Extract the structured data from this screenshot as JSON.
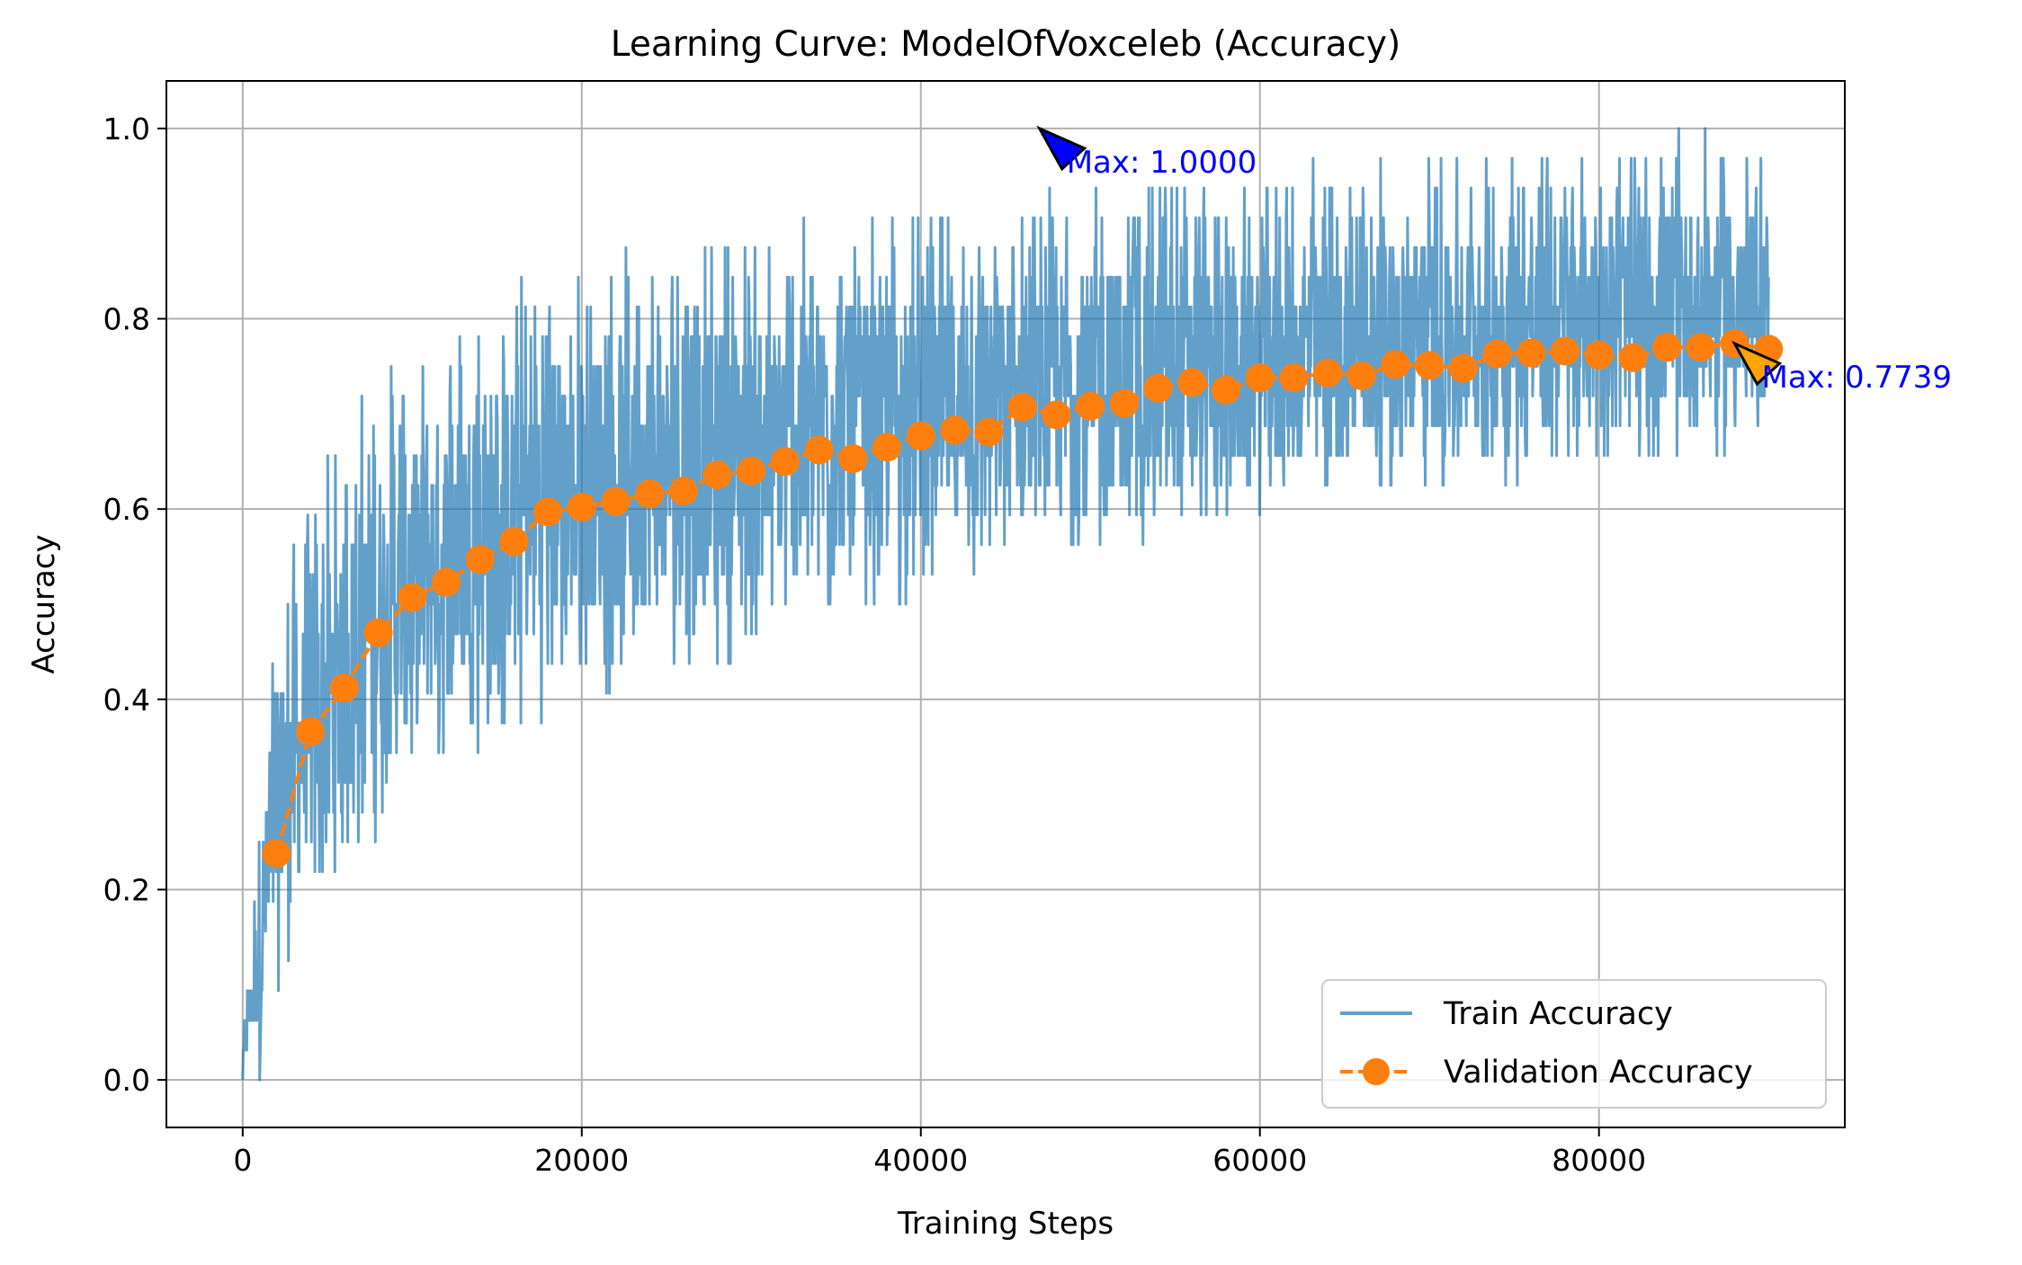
{
  "chart_data": {
    "type": "line",
    "title": "Learning Curve: ModelOfVoxceleb (Accuracy)",
    "xlabel": "Training Steps",
    "ylabel": "Accuracy",
    "xlim": [
      -4500,
      94500
    ],
    "ylim": [
      -0.05,
      1.05
    ],
    "x_ticks": [
      0,
      20000,
      40000,
      60000,
      80000
    ],
    "x_tick_labels": [
      "0",
      "20000",
      "40000",
      "60000",
      "80000"
    ],
    "y_ticks": [
      0.0,
      0.2,
      0.4,
      0.6,
      0.8,
      1.0
    ],
    "y_tick_labels": [
      "0.0",
      "0.2",
      "0.4",
      "0.6",
      "0.8",
      "1.0"
    ],
    "grid": true,
    "legend_position": "lower-right",
    "colors": {
      "train": "#1f77b4",
      "validation": "#ff7f0e",
      "annotation_text": "#0000ff",
      "train_max_marker": "#0000ff",
      "validation_max_marker": "#ffa500"
    },
    "series": [
      {
        "name": "Train Accuracy",
        "style": "solid-line",
        "note_points": "noisy per-step values; envelope described by x, mean, low, high",
        "x": [
          0,
          500,
          1000,
          1500,
          2000,
          3000,
          4000,
          5000,
          6000,
          8000,
          10000,
          12000,
          14000,
          16000,
          18000,
          20000,
          22000,
          24000,
          26000,
          28000,
          30000,
          32000,
          34000,
          36000,
          38000,
          40000,
          42000,
          44000,
          46000,
          48000,
          50000,
          52000,
          54000,
          56000,
          58000,
          60000,
          62000,
          64000,
          66000,
          68000,
          70000,
          72000,
          74000,
          76000,
          78000,
          80000,
          82000,
          84000,
          86000,
          88000,
          90000
        ],
        "mean": [
          0.02,
          0.08,
          0.15,
          0.22,
          0.28,
          0.33,
          0.37,
          0.4,
          0.43,
          0.48,
          0.52,
          0.55,
          0.57,
          0.59,
          0.61,
          0.62,
          0.63,
          0.64,
          0.645,
          0.655,
          0.665,
          0.67,
          0.68,
          0.685,
          0.69,
          0.7,
          0.705,
          0.71,
          0.715,
          0.72,
          0.725,
          0.73,
          0.735,
          0.74,
          0.745,
          0.75,
          0.755,
          0.76,
          0.765,
          0.77,
          0.775,
          0.78,
          0.785,
          0.79,
          0.795,
          0.8,
          0.8,
          0.805,
          0.81,
          0.81,
          0.81
        ],
        "low": [
          0.0,
          0.0,
          0.0,
          0.05,
          0.1,
          0.14,
          0.17,
          0.2,
          0.22,
          0.26,
          0.29,
          0.32,
          0.34,
          0.36,
          0.38,
          0.4,
          0.41,
          0.42,
          0.43,
          0.44,
          0.45,
          0.46,
          0.47,
          0.48,
          0.49,
          0.5,
          0.5,
          0.51,
          0.52,
          0.53,
          0.54,
          0.55,
          0.56,
          0.57,
          0.58,
          0.59,
          0.6,
          0.6,
          0.61,
          0.62,
          0.62,
          0.63,
          0.63,
          0.64,
          0.64,
          0.65,
          0.65,
          0.65,
          0.66,
          0.66,
          0.66
        ],
        "high": [
          0.05,
          0.16,
          0.28,
          0.4,
          0.5,
          0.56,
          0.62,
          0.66,
          0.7,
          0.76,
          0.79,
          0.81,
          0.83,
          0.84,
          0.85,
          0.86,
          0.87,
          0.875,
          0.88,
          0.885,
          0.89,
          0.9,
          0.9,
          0.905,
          0.91,
          0.915,
          0.92,
          0.92,
          0.93,
          0.935,
          0.94,
          0.94,
          0.945,
          0.95,
          0.95,
          0.955,
          0.96,
          0.96,
          0.965,
          0.965,
          0.97,
          0.97,
          0.975,
          0.975,
          0.98,
          0.98,
          0.98,
          0.985,
          0.985,
          0.985,
          0.985
        ]
      },
      {
        "name": "Validation Accuracy",
        "style": "dashed-line-circle-markers",
        "x": [
          2000,
          4000,
          6000,
          8000,
          10000,
          12000,
          14000,
          16000,
          18000,
          20000,
          22000,
          24000,
          26000,
          28000,
          30000,
          32000,
          34000,
          36000,
          38000,
          40000,
          42000,
          44000,
          46000,
          48000,
          50000,
          52000,
          54000,
          56000,
          58000,
          60000,
          62000,
          64000,
          66000,
          68000,
          70000,
          72000,
          74000,
          76000,
          78000,
          80000,
          82000,
          84000,
          86000,
          88000,
          90000
        ],
        "values": [
          0.238,
          0.366,
          0.412,
          0.47,
          0.507,
          0.523,
          0.547,
          0.566,
          0.597,
          0.602,
          0.608,
          0.616,
          0.619,
          0.636,
          0.64,
          0.65,
          0.662,
          0.653,
          0.665,
          0.677,
          0.683,
          0.681,
          0.707,
          0.699,
          0.708,
          0.711,
          0.727,
          0.733,
          0.725,
          0.738,
          0.738,
          0.743,
          0.74,
          0.752,
          0.751,
          0.748,
          0.763,
          0.764,
          0.766,
          0.762,
          0.759,
          0.77,
          0.77,
          0.774,
          0.768
        ]
      }
    ],
    "annotations": [
      {
        "text": "Max: 1.0000",
        "x": 47000,
        "y": 1.0,
        "marker_color": "#0000ff"
      },
      {
        "text": "Max: 0.7739",
        "x": 88000,
        "y": 0.7739,
        "marker_color": "#ffa500"
      }
    ]
  }
}
